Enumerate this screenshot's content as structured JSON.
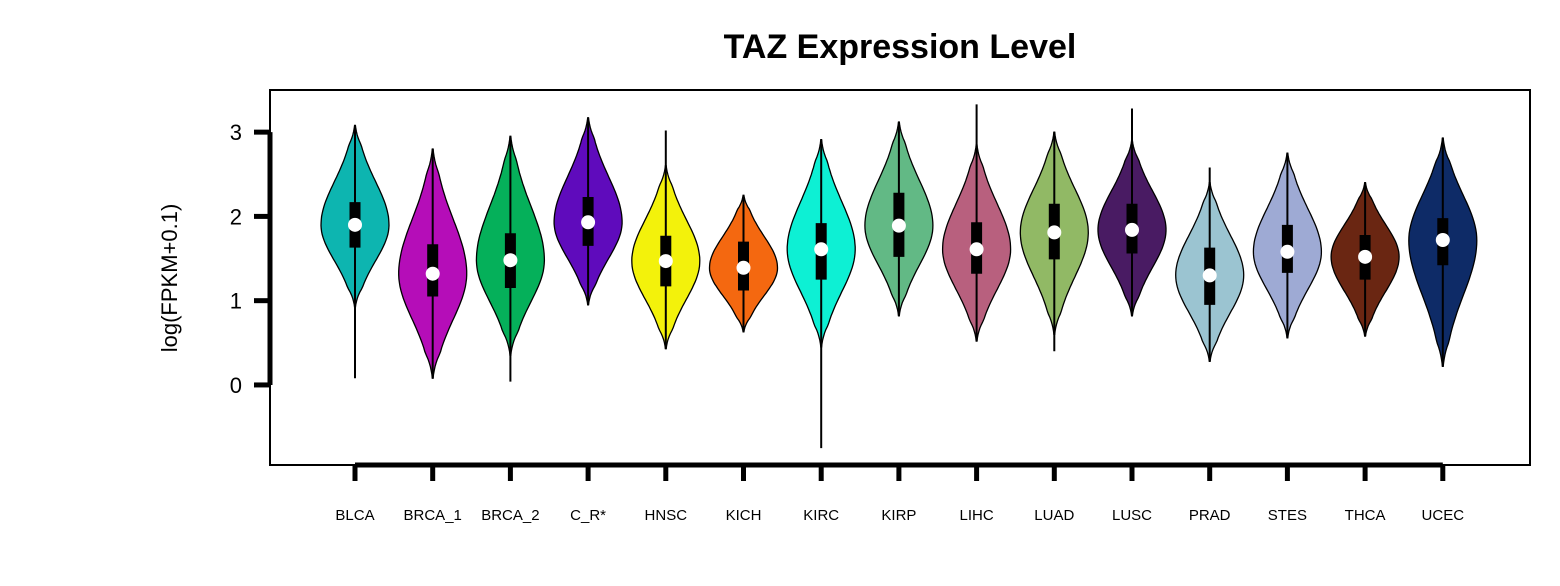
{
  "chart_data": {
    "type": "violin",
    "title": "TAZ Expression Level",
    "xlabel": "",
    "ylabel": "log(FPKM+0.1)",
    "ylim": [
      -0.95,
      3.5
    ],
    "yticks": [
      0,
      1,
      2,
      3
    ],
    "grid": false,
    "legend": "none",
    "categories": [
      "BLCA",
      "BRCA_1",
      "BRCA_2",
      "C_R*",
      "HNSC",
      "KICH",
      "KIRC",
      "KIRP",
      "LIHC",
      "LUAD",
      "LUSC",
      "PRAD",
      "STES",
      "THCA",
      "UCEC"
    ],
    "series": [
      {
        "category": "BLCA",
        "color": "#0DB5B0",
        "min": 0.08,
        "max": 3.08,
        "q1": 1.63,
        "median": 1.9,
        "q3": 2.17,
        "violin_min": 0.92,
        "violin_max": 3.08
      },
      {
        "category": "BRCA_1",
        "color": "#B50DB8",
        "min": 0.08,
        "max": 2.8,
        "q1": 1.05,
        "median": 1.32,
        "q3": 1.67,
        "violin_min": 0.08,
        "violin_max": 2.8
      },
      {
        "category": "BRCA_2",
        "color": "#05B05A",
        "min": 0.04,
        "max": 2.95,
        "q1": 1.15,
        "median": 1.48,
        "q3": 1.8,
        "violin_min": 0.35,
        "violin_max": 2.95
      },
      {
        "category": "C_R*",
        "color": "#5F0BBC",
        "min": 0.95,
        "max": 3.17,
        "q1": 1.65,
        "median": 1.93,
        "q3": 2.23,
        "violin_min": 0.95,
        "violin_max": 3.17
      },
      {
        "category": "HNSC",
        "color": "#F3F20B",
        "min": 0.43,
        "max": 3.02,
        "q1": 1.17,
        "median": 1.47,
        "q3": 1.77,
        "violin_min": 0.43,
        "violin_max": 2.6
      },
      {
        "category": "KICH",
        "color": "#F46810",
        "min": 0.63,
        "max": 2.25,
        "q1": 1.12,
        "median": 1.39,
        "q3": 1.7,
        "violin_min": 0.63,
        "violin_max": 2.25
      },
      {
        "category": "KIRC",
        "color": "#0DF0D4",
        "min": -0.75,
        "max": 2.91,
        "q1": 1.25,
        "median": 1.61,
        "q3": 1.92,
        "violin_min": 0.45,
        "violin_max": 2.91
      },
      {
        "category": "KIRP",
        "color": "#62B985",
        "min": 0.82,
        "max": 3.12,
        "q1": 1.52,
        "median": 1.89,
        "q3": 2.28,
        "violin_min": 0.82,
        "violin_max": 3.12
      },
      {
        "category": "LIHC",
        "color": "#B8607E",
        "min": 0.52,
        "max": 3.33,
        "q1": 1.32,
        "median": 1.61,
        "q3": 1.93,
        "violin_min": 0.52,
        "violin_max": 2.85
      },
      {
        "category": "LUAD",
        "color": "#91B965",
        "min": 0.4,
        "max": 3.0,
        "q1": 1.49,
        "median": 1.81,
        "q3": 2.15,
        "violin_min": 0.6,
        "violin_max": 3.0
      },
      {
        "category": "LUSC",
        "color": "#491B63",
        "min": 0.82,
        "max": 3.28,
        "q1": 1.56,
        "median": 1.84,
        "q3": 2.15,
        "violin_min": 0.82,
        "violin_max": 2.9
      },
      {
        "category": "PRAD",
        "color": "#9BC4D1",
        "min": 0.28,
        "max": 2.58,
        "q1": 0.95,
        "median": 1.3,
        "q3": 1.63,
        "violin_min": 0.28,
        "violin_max": 2.4
      },
      {
        "category": "STES",
        "color": "#9EAAD4",
        "min": 0.56,
        "max": 2.75,
        "q1": 1.33,
        "median": 1.58,
        "q3": 1.9,
        "violin_min": 0.56,
        "violin_max": 2.75
      },
      {
        "category": "THCA",
        "color": "#6A2612",
        "min": 0.58,
        "max": 2.4,
        "q1": 1.25,
        "median": 1.52,
        "q3": 1.78,
        "violin_min": 0.58,
        "violin_max": 2.4
      },
      {
        "category": "UCEC",
        "color": "#0E2B67",
        "min": 0.22,
        "max": 2.93,
        "q1": 1.42,
        "median": 1.72,
        "q3": 1.98,
        "violin_min": 0.22,
        "violin_max": 2.93
      }
    ]
  }
}
